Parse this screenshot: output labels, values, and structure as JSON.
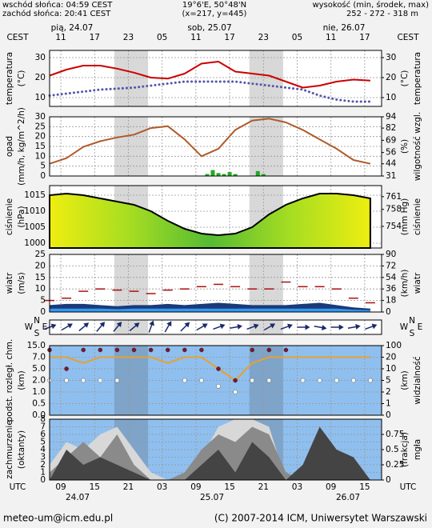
{
  "header": {
    "sunrise": "wschód słońca: 04:59 CEST",
    "sunset": "zachód słońca: 20:41 CEST",
    "coords": "19°6'E, 50°48'N",
    "grid_point": "(x=217, y=445)",
    "elevation_title": "wysokość (min, środek, max)",
    "elevation": "252 - 272 - 318 m"
  },
  "footer": {
    "email": "meteo-um@icm.edu.pl",
    "copyright": "(C) 2007-2014 ICM, Uniwersytet Warszawski"
  },
  "time_axis": {
    "xlim": [
      7,
      66
    ],
    "x": [
      7,
      10,
      13,
      16,
      19,
      22,
      25,
      28,
      31,
      34,
      37,
      40,
      43,
      46,
      49,
      52,
      55,
      58,
      61,
      64
    ],
    "night": [
      [
        18.5,
        24.5
      ],
      [
        42.5,
        48.5
      ]
    ],
    "top_label": "CEST",
    "bottom_label": "UTC",
    "cest_ticks": [
      {
        "value": 9,
        "label": "11"
      },
      {
        "value": 15,
        "label": "17"
      },
      {
        "value": 21,
        "label": "23"
      },
      {
        "value": 27,
        "label": "05"
      },
      {
        "value": 33,
        "label": "11"
      },
      {
        "value": 39,
        "label": "17"
      },
      {
        "value": 45,
        "label": "23"
      },
      {
        "value": 51,
        "label": "05"
      },
      {
        "value": 57,
        "label": "11"
      },
      {
        "value": 63,
        "label": "17"
      }
    ],
    "utc_ticks": [
      {
        "value": 9,
        "label": "09"
      },
      15,
      21,
      {
        "value": 27,
        "label": "03"
      },
      {
        "value": 33,
        "label": "09"
      },
      {
        "value": 39,
        "label": "15"
      },
      {
        "value": 45,
        "label": "21"
      },
      {
        "value": 51,
        "label": "03"
      },
      {
        "value": 57,
        "label": "09"
      },
      {
        "value": 63,
        "label": "15"
      }
    ],
    "top_days": [
      "pią, 24.07",
      "sob, 25.07",
      "nie, 26.07"
    ],
    "bottom_days": [
      "24.07",
      "25.07",
      "26.07"
    ]
  },
  "chart_data": [
    {
      "type": "line",
      "y_label": [
        "temperatura",
        "(°C)"
      ],
      "y2_label": [
        "(°C)",
        "temperatura"
      ],
      "ylim": [
        5.6,
        33.6
      ],
      "yticks": [
        10,
        20,
        30
      ],
      "y2lim": [
        5.6,
        33.6
      ],
      "y2ticks": [
        10,
        20,
        30
      ],
      "grid": true,
      "series": [
        {
          "type": "line",
          "color": "#cc0000",
          "values": [
            21,
            24,
            26,
            26,
            24.5,
            22.5,
            20,
            19.5,
            22,
            27,
            28,
            23,
            22,
            21,
            18,
            15,
            16,
            18,
            19,
            18.5
          ]
        },
        {
          "type": "line",
          "style": "dotted",
          "color": "#5555aa",
          "values": [
            11,
            12,
            13,
            14,
            14.5,
            15,
            16,
            17,
            18,
            18,
            18,
            18,
            17,
            16,
            15,
            14,
            11,
            9,
            8,
            8
          ]
        }
      ]
    },
    {
      "type": "line",
      "y_label": [
        "opad",
        "(mm/h, kg/m^2/h)"
      ],
      "y2_label": [
        "(%)",
        "wilgotność wzgl."
      ],
      "ylim": [
        0,
        30
      ],
      "yticks": [
        0,
        5,
        10,
        15,
        20,
        25,
        30
      ],
      "y2lim": [
        31,
        94
      ],
      "y2ticks": [
        31,
        44,
        56,
        69,
        82,
        94
      ],
      "grid": true,
      "series": [
        {
          "type": "bar",
          "color": "#22aa22",
          "x": [
            35,
            36,
            37,
            38,
            39,
            40,
            44,
            45
          ],
          "values": [
            1,
            3,
            1.5,
            1,
            2,
            1,
            2.5,
            1
          ]
        },
        {
          "type": "line",
          "axis": "y2",
          "color": "#b05a2a",
          "values": [
            44,
            50,
            62,
            68,
            72,
            75,
            82,
            84,
            70,
            52,
            60,
            80,
            90,
            92,
            88,
            80,
            70,
            60,
            48,
            44
          ]
        }
      ]
    },
    {
      "type": "area",
      "y_label": [
        "ciśnienie",
        "(hPa)"
      ],
      "y2_label": [
        "(mm Hg)",
        "ciśnienie"
      ],
      "ylim": [
        998.5,
        1018
      ],
      "yticks": [
        1000,
        1005,
        1010,
        1015
      ],
      "y2lim": [
        748.9,
        763.6
      ],
      "y2ticks": [
        754,
        758,
        761
      ],
      "grid": true,
      "series": [
        {
          "type": "area",
          "color": "#000000",
          "gradient": [
            "#eeee10",
            "#a6dd22",
            "#55bb33",
            "#a6dd22",
            "#eeee10"
          ],
          "values": [
            1015,
            1015.5,
            1015,
            1014,
            1013,
            1012,
            1010,
            1007,
            1004.5,
            1003,
            1002.5,
            1003,
            1005,
            1009,
            1012,
            1014,
            1015.5,
            1015.5,
            1015,
            1014
          ]
        }
      ]
    },
    {
      "type": "area",
      "y_label": [
        "wiatr",
        "(m/s)"
      ],
      "y2_label": [
        "(km/h)",
        "wiatr"
      ],
      "ylim": [
        0,
        25
      ],
      "yticks": [
        0,
        5,
        10,
        15,
        20,
        25
      ],
      "y2lim": [
        0,
        90
      ],
      "y2ticks": [
        0,
        18,
        36,
        54,
        72,
        90
      ],
      "grid": true,
      "series": [
        {
          "type": "area",
          "color": "#1a3a7a",
          "values": [
            3,
            3.5,
            3.5,
            3,
            2.5,
            3,
            3,
            3.5,
            3,
            3.5,
            4,
            3.5,
            3,
            3,
            3,
            3.5,
            4,
            3,
            2,
            1.5
          ]
        },
        {
          "type": "area",
          "color": "#3399ee",
          "values": [
            1.5,
            1.5,
            1.5,
            1.5,
            1.2,
            1.5,
            1.5,
            1.5,
            1.5,
            1.5,
            1.5,
            1.5,
            1.5,
            1.5,
            1.5,
            1.5,
            1.5,
            1.5,
            1,
            0.8
          ]
        },
        {
          "type": "dash",
          "color": "#aa1111",
          "values": [
            5,
            6,
            9,
            10,
            9.5,
            9,
            8,
            9.5,
            10,
            11,
            12,
            11,
            10,
            10,
            13,
            11,
            11,
            10,
            6,
            4
          ]
        }
      ]
    },
    {
      "type": "arrows",
      "compass": {
        "n": "N",
        "s": "S",
        "w": "W",
        "e": "E"
      },
      "series": [
        {
          "type": "arrows",
          "color": "#1a2a6a",
          "values": [
            250,
            240,
            230,
            220,
            220,
            230,
            200,
            210,
            225,
            240,
            250,
            260,
            250,
            240,
            250,
            270,
            280,
            270,
            260,
            250
          ]
        }
      ]
    },
    {
      "type": "scatter",
      "scale": "tick-spaced",
      "y_label": [
        "podst. rozległ. chm.",
        "(km)"
      ],
      "y2_label": [
        "(km)",
        "widzialność"
      ],
      "ylim": [
        0,
        15
      ],
      "yticks": [
        {
          "value": 0,
          "label": "0.0"
        },
        {
          "value": 0.5,
          "label": "0.5"
        },
        {
          "value": 1,
          "label": "1.0"
        },
        {
          "value": 2,
          "label": "2.0"
        },
        {
          "value": 5,
          "label": "5.0"
        },
        {
          "value": 7,
          "label": "7.0"
        },
        {
          "value": 15,
          "label": "15.0"
        }
      ],
      "y2lim": [
        0,
        100
      ],
      "y2ticks": [
        0,
        1,
        2,
        5,
        10,
        20,
        100
      ],
      "grid": true,
      "series": [
        {
          "type": "line",
          "axis": "y2",
          "color": "#e8a030",
          "values": [
            20,
            20,
            15,
            20,
            20,
            20,
            20,
            15,
            20,
            20,
            10,
            5,
            15,
            20,
            20,
            20,
            20,
            20,
            20,
            20
          ]
        },
        {
          "type": "dots",
          "color": "#7a1530",
          "values": [
            12,
            5,
            12,
            12,
            12,
            12,
            12,
            12,
            12,
            12,
            5,
            2,
            12,
            12,
            12,
            null,
            null,
            null,
            null,
            null
          ]
        },
        {
          "type": "dots",
          "color": "#ffffff",
          "values": [
            2,
            2,
            2,
            2,
            2,
            null,
            null,
            null,
            2,
            2,
            1.5,
            1,
            2,
            2,
            null,
            2,
            2,
            2,
            2,
            2
          ]
        }
      ]
    },
    {
      "type": "area",
      "y_label": [
        "zachmurzenie",
        "(oktanty)"
      ],
      "y2_label": [
        "(frakcja)",
        "mgła"
      ],
      "ylim": [
        0,
        8
      ],
      "yticks": [
        0,
        1,
        2,
        3,
        4,
        5,
        6,
        7,
        8
      ],
      "y2lim": [
        0,
        1
      ],
      "y2ticks": [
        0,
        0.25,
        0.5,
        0.75
      ],
      "grid": true,
      "series": [
        {
          "type": "area",
          "color": "#d8d8d8",
          "values": [
            2,
            5,
            4,
            6,
            7,
            4,
            1,
            0,
            0,
            3,
            7,
            8,
            8,
            7,
            0,
            0,
            0,
            0,
            0,
            0
          ]
        },
        {
          "type": "area",
          "color": "#8a8a8a",
          "values": [
            1,
            3,
            5,
            3,
            6,
            2,
            0,
            0,
            1,
            4,
            6,
            5,
            7,
            6,
            1,
            0,
            2,
            0,
            0,
            0
          ]
        },
        {
          "type": "area",
          "color": "#444444",
          "values": [
            0,
            4,
            2,
            3,
            2,
            1,
            0,
            0,
            0,
            2,
            4,
            1,
            5,
            3,
            0,
            2,
            7,
            4,
            3,
            0
          ]
        }
      ]
    }
  ]
}
